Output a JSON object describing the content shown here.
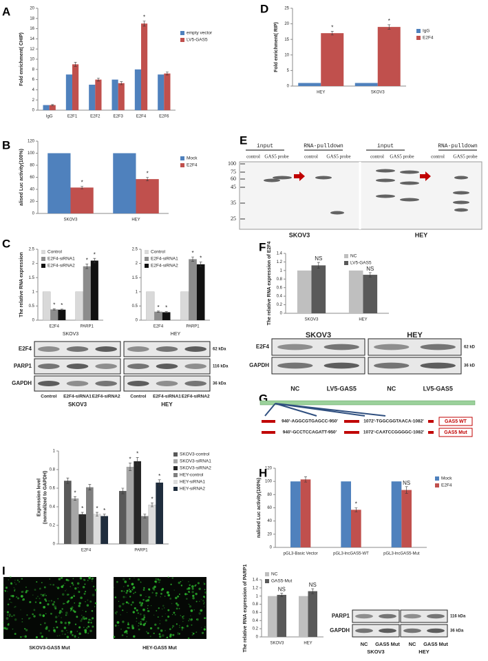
{
  "panel_labels": [
    "A",
    "D",
    "B",
    "E",
    "C",
    "F",
    "G",
    "H",
    "I"
  ],
  "chart_data": [
    {
      "type": "bar",
      "y_label": "Fold enrichment( CHIP)",
      "categories": [
        "IgG",
        "E2F1",
        "E2F2",
        "E2F3",
        "E2F4",
        "E2F6"
      ],
      "ylim": [
        0,
        20
      ],
      "yticks": [
        0,
        2,
        4,
        6,
        8,
        10,
        12,
        14,
        16,
        18,
        20
      ],
      "series": [
        {
          "name": "empty vector",
          "color": "#4f81bd",
          "values": [
            1,
            7,
            5,
            6,
            8,
            7
          ]
        },
        {
          "name": "LV5-GAS5",
          "color": "#c0504d",
          "values": [
            1,
            9,
            6,
            5.3,
            17,
            7.2
          ],
          "errors": [
            0.1,
            0.4,
            0.3,
            0.3,
            0.5,
            0.3
          ],
          "annotations": [
            null,
            null,
            null,
            null,
            "*",
            null
          ]
        }
      ]
    },
    {
      "type": "bar",
      "y_label": "Fold enrichment( RIP)",
      "categories": [
        "HEY",
        "SKOV3"
      ],
      "ylim": [
        0,
        25
      ],
      "yticks": [
        0,
        5,
        10,
        15,
        20,
        25
      ],
      "series": [
        {
          "name": "IgG",
          "color": "#4f81bd",
          "values": [
            1,
            1
          ]
        },
        {
          "name": "E2F4",
          "color": "#c0504d",
          "values": [
            17,
            19
          ],
          "errors": [
            0.6,
            0.7
          ],
          "annotations": [
            "*",
            "*"
          ]
        }
      ]
    },
    {
      "type": "bar",
      "y_label": "alised Luc activity(100%)",
      "categories": [
        "SKOV3",
        "HEY"
      ],
      "ylim": [
        0,
        120
      ],
      "yticks": [
        0,
        20,
        40,
        60,
        80,
        100,
        120
      ],
      "series": [
        {
          "name": "Mock",
          "color": "#4f81bd",
          "values": [
            100,
            100
          ]
        },
        {
          "name": "E2F4",
          "color": "#c0504d",
          "values": [
            43,
            57
          ],
          "errors": [
            2,
            3
          ],
          "annotations": [
            "*",
            "*"
          ]
        }
      ]
    },
    {
      "type": "bar",
      "y_label": "The relative RNA expression",
      "x_label": "SKOV3",
      "categories": [
        "E2F4",
        "PARP1"
      ],
      "ylim": [
        0,
        2.5
      ],
      "yticks": [
        0,
        0.5,
        1,
        1.5,
        2,
        2.5
      ],
      "series": [
        {
          "name": "Control",
          "color": "#d9d9d9",
          "values": [
            1,
            1
          ]
        },
        {
          "name": "E2F4-siRNA1",
          "color": "#8c8c8c",
          "values": [
            0.38,
            1.9
          ],
          "errors": [
            0.02,
            0.08
          ],
          "annotations": [
            "*",
            "*"
          ]
        },
        {
          "name": "E2F4-siRNA2",
          "color": "#111111",
          "values": [
            0.37,
            2.1
          ],
          "errors": [
            0.02,
            0.08
          ],
          "annotations": [
            "*",
            "*"
          ]
        }
      ]
    },
    {
      "type": "bar",
      "x_label": "HEY",
      "categories": [
        "E2F4",
        "PARP1"
      ],
      "ylim": [
        0,
        2.5
      ],
      "yticks": [
        0,
        0.5,
        1,
        1.5,
        2,
        2.5
      ],
      "series": [
        {
          "name": "Control",
          "color": "#d9d9d9",
          "values": [
            1,
            1
          ]
        },
        {
          "name": "E2F4-siRNA1",
          "color": "#8c8c8c",
          "values": [
            0.3,
            2.15
          ],
          "errors": [
            0.02,
            0.08
          ],
          "annotations": [
            "*",
            "*"
          ]
        },
        {
          "name": "E2F4-siRNA2",
          "color": "#111111",
          "values": [
            0.28,
            1.97
          ],
          "errors": [
            0.02,
            0.08
          ],
          "annotations": [
            "*",
            "*"
          ]
        }
      ]
    },
    {
      "type": "bar",
      "y_label": [
        "Expression level",
        "(normalized to GAPDH)"
      ],
      "categories": [
        "E2F4",
        "PARP1"
      ],
      "ylim": [
        0,
        1
      ],
      "yticks": [
        0,
        0.2,
        0.4,
        0.6,
        0.8,
        1
      ],
      "series": [
        {
          "name": "SKOV3-control",
          "color": "#595959",
          "values": [
            0.68,
            0.57
          ],
          "errors": [
            0.03,
            0.03
          ]
        },
        {
          "name": "SKOV3-siRNA1",
          "color": "#a6a6a6",
          "values": [
            0.49,
            0.83
          ],
          "errors": [
            0.02,
            0.04
          ],
          "annotations": [
            "*",
            "*"
          ]
        },
        {
          "name": "SKOV3-siRNA2",
          "color": "#262626",
          "values": [
            0.32,
            0.89
          ],
          "errors": [
            0.02,
            0.04
          ],
          "annotations": [
            "*",
            "*"
          ]
        },
        {
          "name": "HEY-control",
          "color": "#7f7f7f",
          "values": [
            0.61,
            0.3
          ],
          "errors": [
            0.03,
            0.02
          ]
        },
        {
          "name": "HEY-siRNA1",
          "color": "#dcdcdc",
          "values": [
            0.32,
            0.42
          ],
          "errors": [
            0.02,
            0.02
          ],
          "annotations": [
            "*",
            "*"
          ]
        },
        {
          "name": "HEY-siRNA2",
          "color": "#1f2d3d",
          "values": [
            0.3,
            0.66
          ],
          "errors": [
            0.02,
            0.03
          ],
          "annotations": [
            "*",
            "*"
          ]
        }
      ]
    },
    {
      "type": "bar",
      "y_label": "The relative RNA expression of E2F4",
      "categories": [
        "SKOV3",
        "HEY"
      ],
      "ylim": [
        0,
        1.4
      ],
      "yticks": [
        0,
        0.2,
        0.4,
        0.6,
        0.8,
        1,
        1.2,
        1.4
      ],
      "series": [
        {
          "name": "NC",
          "color": "#bfbfbf",
          "values": [
            1,
            1
          ]
        },
        {
          "name": "LV5-GAS5",
          "color": "#595959",
          "values": [
            1.12,
            0.9
          ],
          "errors": [
            0.07,
            0.05
          ],
          "annotations": [
            "NS",
            "NS"
          ]
        }
      ]
    },
    {
      "type": "bar",
      "y_label": "nalised Luc activity(100%)",
      "categories": [
        "pGL3-Basic Vector",
        "pGL3-lncGAS5-WT",
        "pGL3-lncGAS5-Mut"
      ],
      "ylim": [
        0,
        120
      ],
      "yticks": [
        0,
        20,
        40,
        60,
        80,
        100,
        120
      ],
      "series": [
        {
          "name": "Mock",
          "color": "#4f81bd",
          "values": [
            100,
            100,
            100
          ]
        },
        {
          "name": "E2F4",
          "color": "#c0504d",
          "values": [
            103,
            57,
            87
          ],
          "errors": [
            4,
            3,
            5
          ],
          "annotations": [
            null,
            "*",
            "NS"
          ]
        }
      ]
    },
    {
      "type": "bar",
      "y_label": "The relative RNA expression of PARP1",
      "categories": [
        "SKOV3",
        "HEY"
      ],
      "ylim": [
        0,
        1.4
      ],
      "yticks": [
        0,
        0.2,
        0.4,
        0.6,
        0.8,
        1,
        1.2,
        1.4
      ],
      "series": [
        {
          "name": "NC",
          "color": "#bfbfbf",
          "values": [
            1,
            1
          ]
        },
        {
          "name": "GAS5-Mut",
          "color": "#595959",
          "values": [
            1.03,
            1.12
          ],
          "errors": [
            0.04,
            0.06
          ],
          "annotations": [
            "NS",
            "NS"
          ]
        }
      ]
    }
  ],
  "blots": [
    {
      "cells": [
        "SKOV3",
        "HEY"
      ],
      "rows": [
        "E2F4",
        "PARP1",
        "GAPDH"
      ],
      "sizes": [
        "62 kDa",
        "116 kDa",
        "36 kDa"
      ],
      "lanes": [
        "Control",
        "E2F4-siRNA1",
        "E2F4-siRNA2"
      ]
    },
    {
      "cells": [
        "SKOV3",
        "HEY"
      ],
      "rows": [
        "E2F4",
        "GAPDH"
      ],
      "sizes": [
        "62 kD",
        "36 kD"
      ],
      "lanes": [
        "NC",
        "LV5-GAS5"
      ]
    },
    {
      "cells": [
        "SKOV3",
        "HEY"
      ],
      "rows": [
        "PARP1",
        "GAPDH"
      ],
      "sizes": [
        "116 kDa",
        "36 kDa"
      ],
      "lanes": [
        "NC",
        "GAS5 Mut"
      ]
    }
  ],
  "pulldown": {
    "groups": [
      "input",
      "RNA-pulldown",
      "input",
      "RNA-pulldown"
    ],
    "lanes": [
      "control",
      "GAS5 probe"
    ],
    "markers": [
      "100",
      "75",
      "60",
      "45",
      "35",
      "25"
    ],
    "cells": [
      "SKOV3",
      "HEY"
    ]
  },
  "diagram": {
    "sequences": [
      [
        "940'-AGGCGTGAGCC-950'",
        "1072'-TGGCGGTAACA-1082'"
      ],
      [
        "940'-GCCTCCAGATT-950'",
        "1072'-CAATCCGGGGC-1082'"
      ]
    ],
    "labels": [
      "GAS5 WT",
      "GAS5 Mut"
    ]
  },
  "images": [
    "SKOV3-GAS5 Mut",
    "HEY-GAS5 Mut"
  ]
}
